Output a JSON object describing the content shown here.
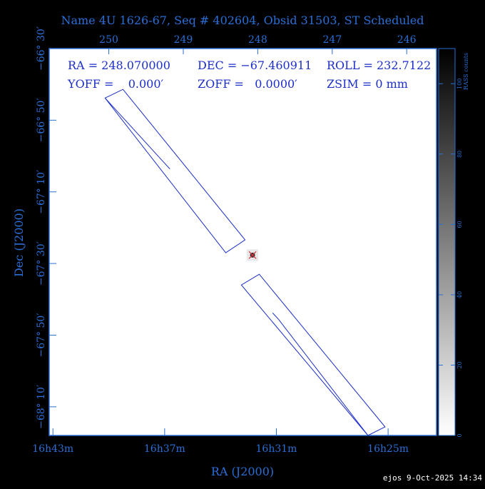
{
  "title": "Name 4U 1626-67, Seq # 402604, Obsid 31503, ST Scheduled",
  "footer": "ejos  9-Oct-2025 14:34",
  "info": {
    "ra": "RA = 248.070000",
    "dec": "DEC = −67.460911",
    "roll": "ROLL = 232.7122",
    "yoff": "YOFF =    0.000′",
    "zoff": "ZOFF =   0.0000′",
    "zsim": "ZSIM = 0 mm"
  },
  "colors": {
    "axis": "#2a6fd6",
    "outline": "#1c2ec8",
    "source": "#e0303a"
  },
  "chart_data": {
    "type": "scatter",
    "xlabel": "RA (J2000)",
    "ylabel": "Dec (J2000)",
    "x_range_deg": [
      250.8,
      245.6
    ],
    "y_range_deg": [
      -66.5,
      -68.3
    ],
    "x_ticks_bottom": [
      {
        "value": 250.75,
        "label": "16h43m"
      },
      {
        "value": 249.25,
        "label": "16h37m"
      },
      {
        "value": 247.75,
        "label": "16h31m"
      },
      {
        "value": 246.25,
        "label": "16h25m"
      }
    ],
    "x_ticks_top": [
      {
        "value": 250,
        "label": "250"
      },
      {
        "value": 249,
        "label": "249"
      },
      {
        "value": 248,
        "label": "248"
      },
      {
        "value": 247,
        "label": "247"
      },
      {
        "value": 246,
        "label": "246"
      }
    ],
    "y_ticks": [
      {
        "value": -66.5,
        "label": "−66° 30′"
      },
      {
        "value": -66.8333,
        "label": "−66° 50′"
      },
      {
        "value": -67.1667,
        "label": "−67° 10′"
      },
      {
        "value": -67.5,
        "label": "−67° 30′"
      },
      {
        "value": -67.8333,
        "label": "−67° 50′"
      },
      {
        "value": -68.1667,
        "label": "−68° 10′"
      }
    ],
    "colorbar": {
      "label": "RASS counts",
      "range": [
        0,
        110
      ],
      "ticks": [
        0,
        20,
        40,
        60,
        80,
        100
      ]
    },
    "source": {
      "ra": 248.07,
      "dec": -67.460911
    },
    "field_outlines": [
      [
        [
          250.05,
          -66.73
        ],
        [
          249.81,
          -66.69
        ],
        [
          248.17,
          -67.39
        ],
        [
          248.43,
          -67.45
        ]
      ],
      [
        [
          250.05,
          -66.73
        ],
        [
          249.26,
          -67.03
        ],
        [
          249.18,
          -67.06
        ]
      ],
      [
        [
          247.98,
          -67.55
        ],
        [
          248.22,
          -67.6
        ],
        [
          246.52,
          -68.3
        ],
        [
          246.29,
          -68.26
        ]
      ],
      [
        [
          246.52,
          -68.3
        ],
        [
          247.72,
          -67.76
        ],
        [
          247.8,
          -67.73
        ]
      ]
    ]
  }
}
